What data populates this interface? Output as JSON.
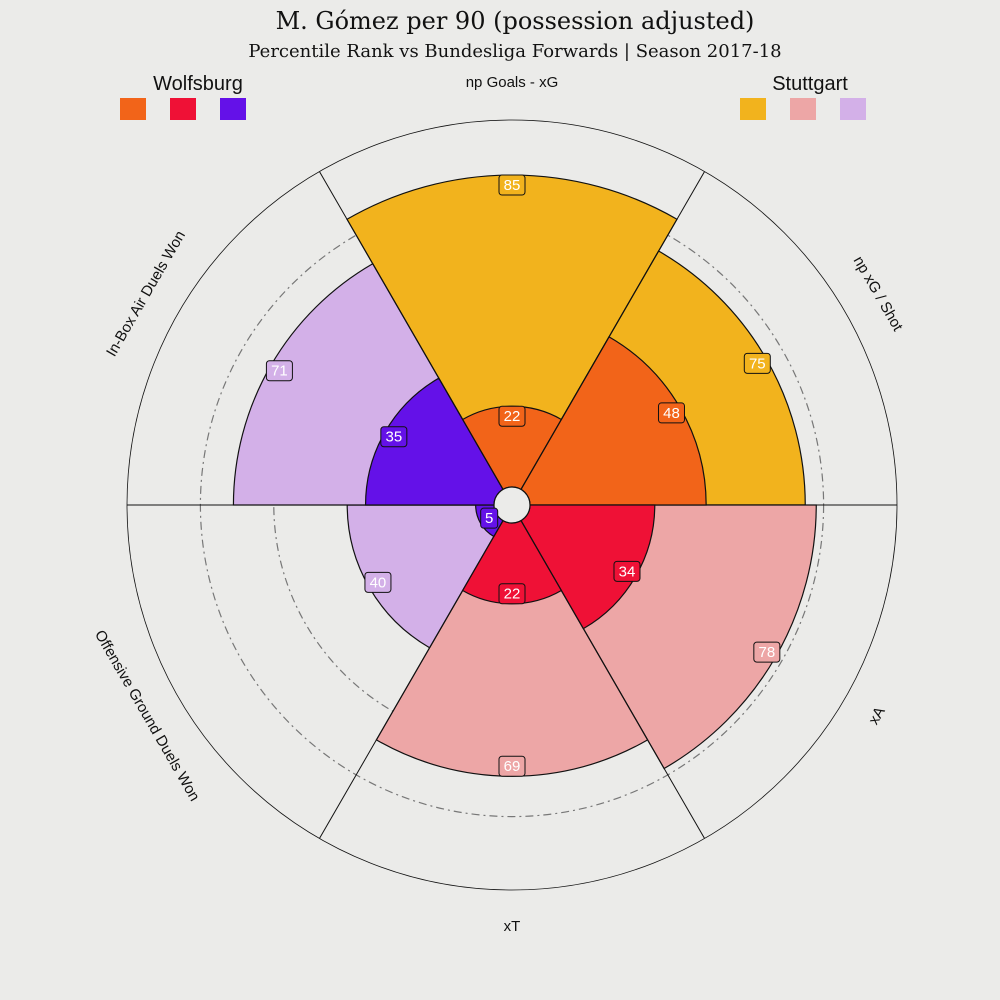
{
  "chart_data": {
    "type": "polar-bar",
    "title": "M. Gómez per 90 (possession adjusted)",
    "subtitle": "Percentile Rank vs Bundesliga Forwards | Season 2017-18",
    "rlim": [
      0,
      100
    ],
    "reference_rings": [
      60,
      80
    ],
    "categories": [
      "np Goals - xG",
      "np xG / Shot",
      "xA",
      "xT",
      "Offensive Ground Duels Won",
      "In-Box Air Duels Won"
    ],
    "series": [
      {
        "name": "Wolfsburg",
        "values": [
          22,
          48,
          34,
          22,
          5,
          35
        ],
        "colors": [
          "#f26419",
          "#f26419",
          "#ef1136",
          "#ef1136",
          "#6411e8",
          "#6411e8"
        ]
      },
      {
        "name": "Stuttgart",
        "values": [
          85,
          75,
          78,
          69,
          40,
          71
        ],
        "colors": [
          "#f2b31d",
          "#f2b31d",
          "#eda6a6",
          "#eda6a6",
          "#d3b0e8",
          "#d3b0e8"
        ]
      }
    ],
    "legend": [
      {
        "team": "Wolfsburg",
        "position": "top-left",
        "colors": [
          "#f26419",
          "#ef1136",
          "#6411e8"
        ]
      },
      {
        "team": "Stuttgart",
        "position": "top-right",
        "colors": [
          "#f2b31d",
          "#eda6a6",
          "#d3b0e8"
        ]
      }
    ]
  }
}
